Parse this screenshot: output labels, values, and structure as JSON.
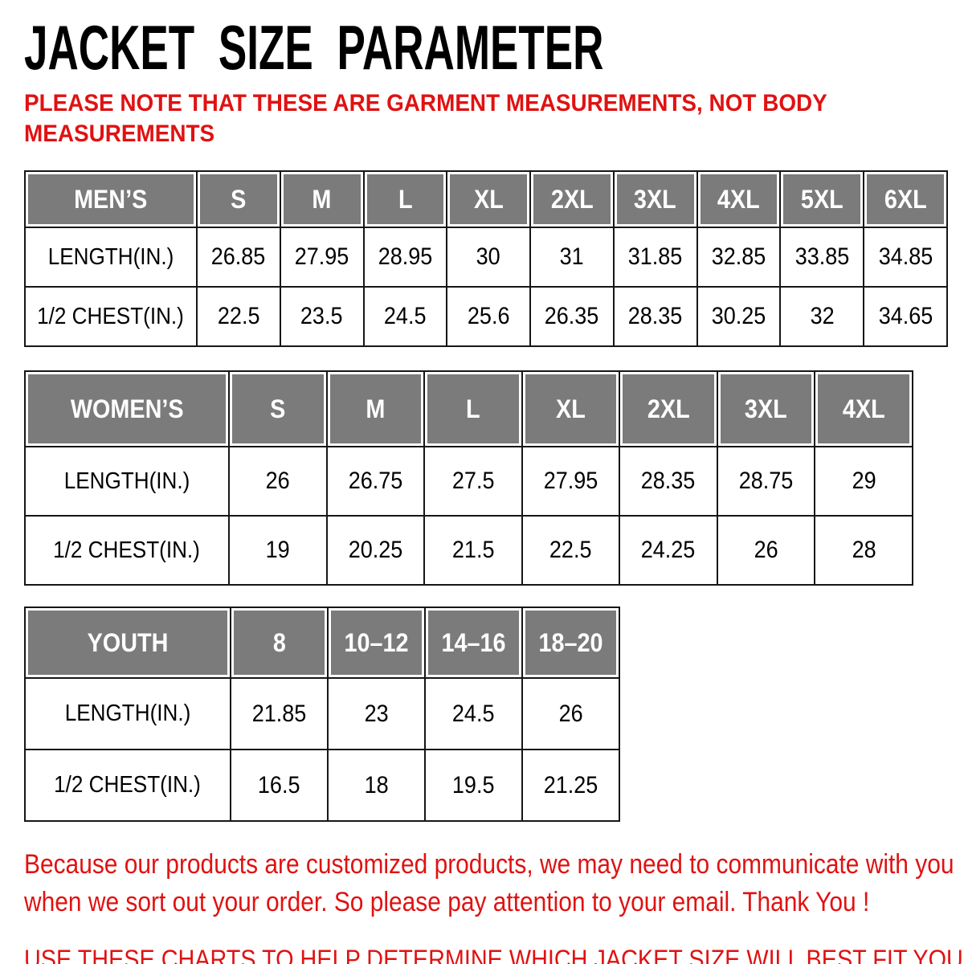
{
  "page": {
    "title": "JACKET SIZE PARAMETER",
    "note_lines": [
      "PLEASE NOTE THAT THESE ARE GARMENT MEASUREMENTS, NOT BODY",
      "MEASUREMENTS"
    ],
    "footer_lines": [
      "Because our products are customized products, we may need to communicate with you",
      "when we sort out your order. So please pay attention to your email. Thank You !"
    ],
    "footer_caps": "USE THESE CHARTS TO HELP DETERMINE WHICH JACKET SIZE WILL BEST FIT YOU."
  },
  "colors": {
    "accent_red": "#e01212",
    "header_gray": "#7b7b7b",
    "border": "#161616",
    "header_text": "#ffffff"
  },
  "tables": [
    {
      "name": "mens",
      "group_label": "MEN’S",
      "sizes": [
        "S",
        "M",
        "L",
        "XL",
        "2XL",
        "3XL",
        "4XL",
        "5XL",
        "6XL"
      ],
      "rows": [
        {
          "label": "LENGTH(IN.)",
          "values": [
            "26.85",
            "27.95",
            "28.95",
            "30",
            "31",
            "31.85",
            "32.85",
            "33.85",
            "34.85"
          ]
        },
        {
          "label": "1/2 CHEST(IN.)",
          "values": [
            "22.5",
            "23.5",
            "24.5",
            "25.6",
            "26.35",
            "28.35",
            "30.25",
            "32",
            "34.65"
          ]
        }
      ]
    },
    {
      "name": "womens",
      "group_label": "WOMEN’S",
      "sizes": [
        "S",
        "M",
        "L",
        "XL",
        "2XL",
        "3XL",
        "4XL"
      ],
      "rows": [
        {
          "label": "LENGTH(IN.)",
          "values": [
            "26",
            "26.75",
            "27.5",
            "27.95",
            "28.35",
            "28.75",
            "29"
          ]
        },
        {
          "label": "1/2 CHEST(IN.)",
          "values": [
            "19",
            "20.25",
            "21.5",
            "22.5",
            "24.25",
            "26",
            "28"
          ]
        }
      ]
    },
    {
      "name": "youth",
      "group_label": "YOUTH",
      "sizes": [
        "8",
        "10–12",
        "14–16",
        "18–20"
      ],
      "rows": [
        {
          "label": "LENGTH(IN.)",
          "values": [
            "21.85",
            "23",
            "24.5",
            "26"
          ]
        },
        {
          "label": "1/2 CHEST(IN.)",
          "values": [
            "16.5",
            "18",
            "19.5",
            "21.25"
          ]
        }
      ]
    }
  ]
}
